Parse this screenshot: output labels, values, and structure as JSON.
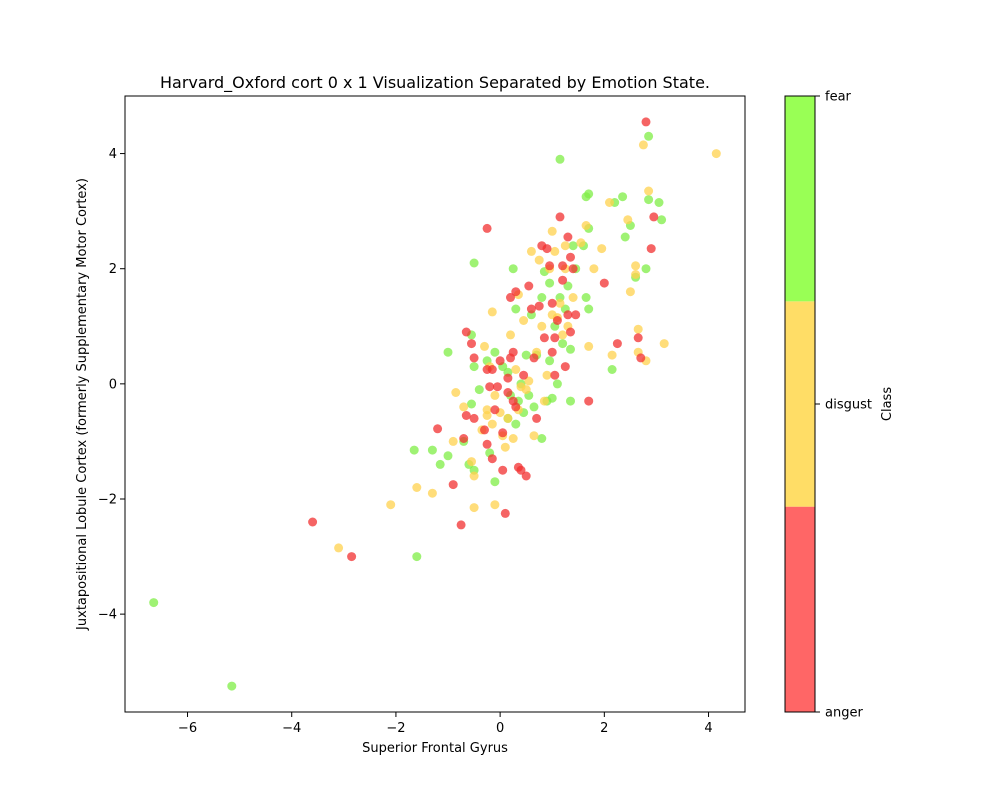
{
  "chart_data": {
    "type": "scatter",
    "title": "Harvard_Oxford cort 0 x 1 Visualization Separated by Emotion State.",
    "xlabel": "Superior Frontal Gyrus",
    "ylabel": "Juxtapositional Lobule Cortex (formerly Supplementary Motor Cortex)",
    "xlim": [
      -7.2,
      4.7
    ],
    "ylim": [
      -5.7,
      5.0
    ],
    "xticks": [
      -6,
      -4,
      -2,
      0,
      2,
      4
    ],
    "yticks": [
      -4,
      -2,
      0,
      2,
      4
    ],
    "grid": false,
    "colorbar": {
      "label": "Class",
      "ticks": [
        "anger",
        "disgust",
        "fear"
      ],
      "colors": {
        "anger": "#ff6666",
        "disgust": "#ffdd66",
        "fear": "#99ff55"
      }
    },
    "marker_colors": {
      "anger": "#f23030",
      "disgust": "#ffd24d",
      "fear": "#7fee45"
    },
    "series": [
      {
        "name": "fear",
        "points": [
          [
            -6.65,
            -3.8
          ],
          [
            -5.15,
            -5.25
          ],
          [
            -1.6,
            -3.0
          ],
          [
            -1.65,
            -1.15
          ],
          [
            -1.3,
            -1.15
          ],
          [
            -1.15,
            -1.4
          ],
          [
            -1.0,
            -1.25
          ],
          [
            -0.7,
            -1.0
          ],
          [
            -0.6,
            -1.4
          ],
          [
            -0.5,
            -1.5
          ],
          [
            -1.0,
            0.55
          ],
          [
            -0.55,
            0.85
          ],
          [
            -0.5,
            2.1
          ],
          [
            -0.5,
            0.3
          ],
          [
            -0.55,
            -0.35
          ],
          [
            -0.4,
            -0.1
          ],
          [
            -0.2,
            -1.2
          ],
          [
            -0.1,
            -1.7
          ],
          [
            -0.1,
            0.55
          ],
          [
            0.05,
            0.3
          ],
          [
            0.2,
            -0.2
          ],
          [
            0.15,
            -0.6
          ],
          [
            0.3,
            -0.7
          ],
          [
            0.35,
            -0.3
          ],
          [
            0.4,
            0.0
          ],
          [
            0.45,
            -0.5
          ],
          [
            0.5,
            0.5
          ],
          [
            0.3,
            1.3
          ],
          [
            0.25,
            2.0
          ],
          [
            0.55,
            -0.2
          ],
          [
            0.6,
            1.2
          ],
          [
            0.65,
            -0.4
          ],
          [
            0.7,
            0.5
          ],
          [
            0.8,
            -0.95
          ],
          [
            0.8,
            1.5
          ],
          [
            0.85,
            1.95
          ],
          [
            0.9,
            -0.3
          ],
          [
            0.95,
            0.4
          ],
          [
            1.0,
            -0.25
          ],
          [
            1.05,
            1.0
          ],
          [
            1.1,
            0.0
          ],
          [
            1.15,
            1.5
          ],
          [
            1.2,
            0.7
          ],
          [
            1.25,
            1.3
          ],
          [
            1.3,
            1.7
          ],
          [
            1.35,
            0.6
          ],
          [
            1.35,
            -0.3
          ],
          [
            1.4,
            2.4
          ],
          [
            1.15,
            3.9
          ],
          [
            1.45,
            2.0
          ],
          [
            1.6,
            2.4
          ],
          [
            1.65,
            1.5
          ],
          [
            1.7,
            1.3
          ],
          [
            1.7,
            2.7
          ],
          [
            1.65,
            3.25
          ],
          [
            1.7,
            3.3
          ],
          [
            2.2,
            3.15
          ],
          [
            2.35,
            3.25
          ],
          [
            2.4,
            2.55
          ],
          [
            2.5,
            2.75
          ],
          [
            2.15,
            0.25
          ],
          [
            2.6,
            1.85
          ],
          [
            2.8,
            2.0
          ],
          [
            2.85,
            4.3
          ],
          [
            2.85,
            3.2
          ],
          [
            3.05,
            3.15
          ],
          [
            3.1,
            2.85
          ],
          [
            0.15,
            0.2
          ],
          [
            -0.25,
            0.4
          ],
          [
            0.95,
            1.75
          ]
        ]
      },
      {
        "name": "disgust",
        "points": [
          [
            -3.1,
            -2.85
          ],
          [
            -2.1,
            -2.1
          ],
          [
            -1.6,
            -1.8
          ],
          [
            -1.3,
            -1.9
          ],
          [
            -0.9,
            -1.0
          ],
          [
            -0.85,
            -0.15
          ],
          [
            -0.7,
            -0.4
          ],
          [
            -0.5,
            -2.15
          ],
          [
            -0.5,
            -1.6
          ],
          [
            -0.55,
            -1.35
          ],
          [
            -0.35,
            -0.8
          ],
          [
            -0.3,
            0.65
          ],
          [
            -0.25,
            -0.45
          ],
          [
            -0.2,
            0.3
          ],
          [
            -0.15,
            -0.7
          ],
          [
            -0.1,
            -0.2
          ],
          [
            -0.1,
            -2.1
          ],
          [
            -0.15,
            1.25
          ],
          [
            0.0,
            -0.5
          ],
          [
            0.05,
            -0.9
          ],
          [
            0.1,
            -1.1
          ],
          [
            0.15,
            -0.6
          ],
          [
            0.2,
            0.85
          ],
          [
            0.25,
            -0.95
          ],
          [
            0.3,
            0.25
          ],
          [
            0.35,
            1.55
          ],
          [
            0.4,
            -0.05
          ],
          [
            0.45,
            1.1
          ],
          [
            0.5,
            -0.1
          ],
          [
            0.55,
            0.05
          ],
          [
            0.6,
            2.3
          ],
          [
            0.65,
            -0.9
          ],
          [
            0.7,
            0.55
          ],
          [
            0.75,
            2.15
          ],
          [
            0.8,
            1.0
          ],
          [
            0.85,
            -0.3
          ],
          [
            0.9,
            0.15
          ],
          [
            0.95,
            2.0
          ],
          [
            1.0,
            2.65
          ],
          [
            1.05,
            2.3
          ],
          [
            1.1,
            1.15
          ],
          [
            1.15,
            1.4
          ],
          [
            1.2,
            0.85
          ],
          [
            1.25,
            2.4
          ],
          [
            1.3,
            1.0
          ],
          [
            1.4,
            1.5
          ],
          [
            1.55,
            2.45
          ],
          [
            1.65,
            2.75
          ],
          [
            1.7,
            0.65
          ],
          [
            1.8,
            2.0
          ],
          [
            1.95,
            2.35
          ],
          [
            2.1,
            3.15
          ],
          [
            2.15,
            0.5
          ],
          [
            2.45,
            2.85
          ],
          [
            2.5,
            1.6
          ],
          [
            2.6,
            2.05
          ],
          [
            2.6,
            1.9
          ],
          [
            2.65,
            0.95
          ],
          [
            2.65,
            0.55
          ],
          [
            2.75,
            4.15
          ],
          [
            2.8,
            0.4
          ],
          [
            2.85,
            3.35
          ],
          [
            3.15,
            0.7
          ],
          [
            4.15,
            4.0
          ],
          [
            -0.25,
            -0.55
          ],
          [
            0.35,
            -0.45
          ],
          [
            1.0,
            1.2
          ],
          [
            1.25,
            2.0
          ]
        ]
      },
      {
        "name": "anger",
        "points": [
          [
            -3.6,
            -2.4
          ],
          [
            -2.85,
            -3.0
          ],
          [
            -1.2,
            -0.78
          ],
          [
            -0.9,
            -1.75
          ],
          [
            -0.75,
            -2.45
          ],
          [
            -0.7,
            -0.95
          ],
          [
            -0.65,
            0.9
          ],
          [
            -0.65,
            -0.55
          ],
          [
            -0.55,
            0.7
          ],
          [
            -0.5,
            -0.6
          ],
          [
            -0.5,
            0.45
          ],
          [
            -0.3,
            -0.8
          ],
          [
            -0.25,
            -1.05
          ],
          [
            -0.25,
            0.25
          ],
          [
            -0.25,
            2.7
          ],
          [
            -0.2,
            -0.05
          ],
          [
            -0.15,
            0.25
          ],
          [
            -0.15,
            -1.3
          ],
          [
            -0.1,
            -0.45
          ],
          [
            -0.05,
            -0.05
          ],
          [
            0.0,
            0.4
          ],
          [
            0.05,
            -0.85
          ],
          [
            0.05,
            -1.5
          ],
          [
            0.1,
            -2.25
          ],
          [
            0.15,
            0.1
          ],
          [
            0.15,
            -0.15
          ],
          [
            0.2,
            1.5
          ],
          [
            0.2,
            0.45
          ],
          [
            0.25,
            -0.3
          ],
          [
            0.25,
            0.55
          ],
          [
            0.3,
            1.6
          ],
          [
            0.3,
            -0.4
          ],
          [
            0.35,
            -1.45
          ],
          [
            0.4,
            -1.5
          ],
          [
            0.45,
            0.15
          ],
          [
            0.5,
            -1.6
          ],
          [
            0.55,
            1.7
          ],
          [
            0.6,
            1.3
          ],
          [
            0.65,
            0.45
          ],
          [
            0.7,
            -0.6
          ],
          [
            0.75,
            1.35
          ],
          [
            0.8,
            2.4
          ],
          [
            0.85,
            0.8
          ],
          [
            0.9,
            2.35
          ],
          [
            0.95,
            2.05
          ],
          [
            1.0,
            0.55
          ],
          [
            1.0,
            1.4
          ],
          [
            1.05,
            0.8
          ],
          [
            1.1,
            1.1
          ],
          [
            1.15,
            2.9
          ],
          [
            1.2,
            1.8
          ],
          [
            1.25,
            0.3
          ],
          [
            1.3,
            2.55
          ],
          [
            1.3,
            1.2
          ],
          [
            1.35,
            2.2
          ],
          [
            1.4,
            2.0
          ],
          [
            1.45,
            1.2
          ],
          [
            1.7,
            -0.3
          ],
          [
            2.0,
            1.75
          ],
          [
            2.25,
            0.7
          ],
          [
            2.7,
            0.45
          ],
          [
            2.65,
            0.8
          ],
          [
            2.8,
            4.55
          ],
          [
            2.9,
            2.35
          ],
          [
            2.95,
            2.9
          ],
          [
            1.05,
            0.15
          ],
          [
            1.2,
            2.05
          ],
          [
            1.35,
            0.9
          ]
        ]
      }
    ]
  }
}
